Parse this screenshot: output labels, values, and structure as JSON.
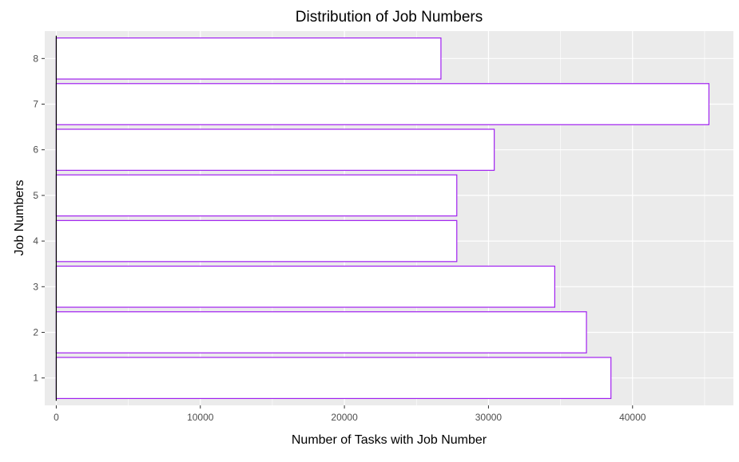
{
  "chart_data": {
    "type": "bar",
    "orientation": "horizontal",
    "title": "Distribution of Job Numbers",
    "xlabel": "Number of Tasks with Job Number",
    "ylabel": "Job Numbers",
    "categories": [
      "1",
      "2",
      "3",
      "4",
      "5",
      "6",
      "7",
      "8"
    ],
    "values": [
      38500,
      36800,
      34600,
      27800,
      27800,
      30400,
      45300,
      26700
    ],
    "xlim": [
      -800,
      47000
    ],
    "x_ticks": [
      0,
      10000,
      20000,
      30000,
      40000
    ],
    "x_tick_labels": [
      "0",
      "10000",
      "20000",
      "30000",
      "40000"
    ],
    "grid": true,
    "panel_color": "#ebebeb",
    "grid_color": "#ffffff",
    "bar_fill": "#ffffff",
    "bar_outline": "#a020f0"
  }
}
